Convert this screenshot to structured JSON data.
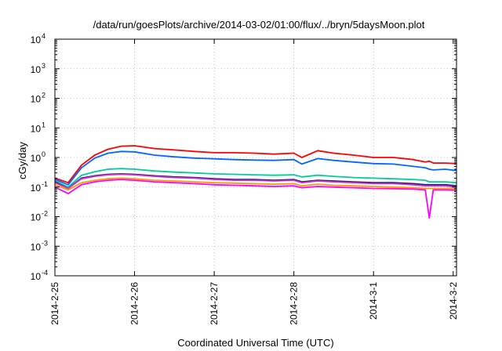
{
  "chart_data": {
    "type": "line",
    "title": "/data/run/goesPlots/archive/2014-03-02/01:00/flux/../bryn/5daysMoon.plot",
    "xlabel": "Coordinated Universal Time (UTC)",
    "ylabel": "cGy/day",
    "yscale": "log",
    "ylim": [
      0.0001,
      10000
    ],
    "y_ticks": [
      {
        "base": "10",
        "exp": "-4",
        "value": 0.0001
      },
      {
        "base": "10",
        "exp": "-3",
        "value": 0.001
      },
      {
        "base": "10",
        "exp": "-2",
        "value": 0.01
      },
      {
        "base": "10",
        "exp": "-1",
        "value": 0.1
      },
      {
        "base": "10",
        "exp": "0",
        "value": 1
      },
      {
        "base": "10",
        "exp": "1",
        "value": 10
      },
      {
        "base": "10",
        "exp": "2",
        "value": 100
      },
      {
        "base": "10",
        "exp": "3",
        "value": 1000
      },
      {
        "base": "10",
        "exp": "4",
        "value": 10000
      }
    ],
    "x_unit": "days",
    "xlim": [
      "2014-02-25",
      "2014-03-02 01:00"
    ],
    "x_ticks": [
      "2014-2-25",
      "2014-2-26",
      "2014-2-27",
      "2014-2-28",
      "2014-3-1",
      "2014-3-2"
    ],
    "grid": true,
    "x": [
      "2014-02-25 00:00",
      "2014-02-25 04:00",
      "2014-02-25 08:00",
      "2014-02-25 12:00",
      "2014-02-25 16:00",
      "2014-02-25 20:00",
      "2014-02-26 00:00",
      "2014-02-26 06:00",
      "2014-02-26 12:00",
      "2014-02-26 18:00",
      "2014-02-27 00:00",
      "2014-02-27 06:00",
      "2014-02-27 12:00",
      "2014-02-27 18:00",
      "2014-02-28 00:00",
      "2014-02-28 02:24",
      "2014-02-28 07:12",
      "2014-02-28 12:00",
      "2014-02-28 18:00",
      "2014-03-01 00:00",
      "2014-03-01 06:00",
      "2014-03-01 12:00",
      "2014-03-01 15:36",
      "2014-03-01 16:48",
      "2014-03-01 18:00",
      "2014-03-01 21:36",
      "2014-03-02 01:00"
    ],
    "series": [
      {
        "color": "#ff0000",
        "values": [
          0.2,
          0.14,
          0.55,
          1.2,
          1.9,
          2.4,
          2.5,
          2.0,
          1.8,
          1.6,
          1.45,
          1.45,
          1.4,
          1.3,
          1.4,
          1.0,
          1.7,
          1.4,
          1.2,
          1.0,
          1.0,
          0.85,
          0.7,
          0.75,
          0.65,
          0.65,
          0.62
        ]
      },
      {
        "color": "#0066ff",
        "values": [
          0.18,
          0.12,
          0.45,
          0.95,
          1.4,
          1.6,
          1.55,
          1.2,
          1.05,
          0.95,
          0.9,
          0.85,
          0.82,
          0.8,
          0.85,
          0.6,
          0.92,
          0.8,
          0.7,
          0.62,
          0.6,
          0.5,
          0.45,
          0.4,
          0.38,
          0.4,
          0.36
        ]
      },
      {
        "color": "#00cc99",
        "values": [
          0.16,
          0.1,
          0.25,
          0.33,
          0.4,
          0.42,
          0.4,
          0.35,
          0.32,
          0.3,
          0.28,
          0.27,
          0.26,
          0.25,
          0.26,
          0.22,
          0.25,
          0.23,
          0.21,
          0.2,
          0.19,
          0.18,
          0.17,
          0.15,
          0.15,
          0.15,
          0.14
        ]
      },
      {
        "color": "#1a1a66",
        "values": [
          0.15,
          0.09,
          0.2,
          0.24,
          0.27,
          0.28,
          0.27,
          0.24,
          0.22,
          0.21,
          0.19,
          0.18,
          0.18,
          0.17,
          0.18,
          0.15,
          0.17,
          0.16,
          0.15,
          0.14,
          0.14,
          0.13,
          0.12,
          0.12,
          0.12,
          0.12,
          0.11
        ]
      },
      {
        "color": "#cc33cc",
        "values": [
          0.14,
          0.09,
          0.19,
          0.23,
          0.26,
          0.27,
          0.26,
          0.23,
          0.21,
          0.2,
          0.18,
          0.17,
          0.17,
          0.16,
          0.17,
          0.14,
          0.16,
          0.15,
          0.14,
          0.13,
          0.13,
          0.12,
          0.11,
          0.11,
          0.11,
          0.11,
          0.1
        ]
      },
      {
        "color": "#ff9900",
        "values": [
          0.12,
          0.08,
          0.14,
          0.17,
          0.19,
          0.2,
          0.19,
          0.17,
          0.16,
          0.15,
          0.14,
          0.135,
          0.13,
          0.125,
          0.13,
          0.11,
          0.125,
          0.115,
          0.11,
          0.105,
          0.1,
          0.095,
          0.09,
          0.09,
          0.09,
          0.09,
          0.088
        ]
      },
      {
        "color": "#ff00ff",
        "values": [
          0.1,
          0.06,
          0.12,
          0.15,
          0.17,
          0.18,
          0.17,
          0.15,
          0.14,
          0.13,
          0.12,
          0.115,
          0.11,
          0.105,
          0.11,
          0.095,
          0.105,
          0.1,
          0.095,
          0.09,
          0.088,
          0.085,
          0.08,
          0.009,
          0.08,
          0.08,
          0.078
        ]
      }
    ]
  }
}
